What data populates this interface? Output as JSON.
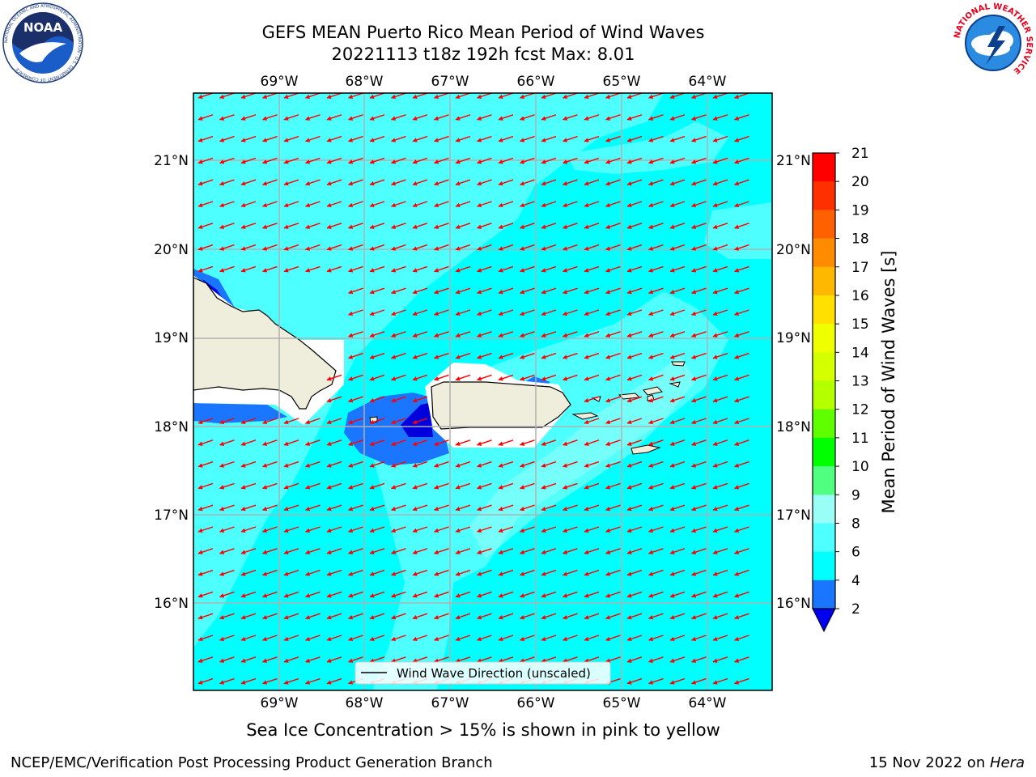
{
  "header": {
    "title_line1": "GEFS MEAN Puerto Rico Mean Period of Wind Waves",
    "title_line2": "20221113 t18z 192h fcst   Max: 8.01"
  },
  "logos": {
    "noaa": {
      "text": "NOAA",
      "ring_text": "NATIONAL OCEANIC AND ATMOSPHERIC ADMINISTRATION · U.S. DEPARTMENT OF COMMERCE"
    },
    "nws": {
      "ring_text": "NATIONAL WEATHER SERVICE"
    }
  },
  "map": {
    "lon_labels": [
      "69°W",
      "68°W",
      "67°W",
      "66°W",
      "65°W",
      "64°W"
    ],
    "lat_labels": [
      "21°N",
      "20°N",
      "19°N",
      "18°N",
      "17°N",
      "16°N"
    ],
    "legend_label": "Wind Wave Direction (unscaled)",
    "colors": {
      "sea_main": "#00ffff",
      "sea_light": "#4dffff",
      "sea_lighter": "#99fff6",
      "wave_blue": "#1a75ff",
      "wave_dark": "#0000dd",
      "land": "#efeedd",
      "arrow": "#ff0000",
      "grid": "#b0b0b0"
    }
  },
  "colorbar": {
    "label": "Mean Period of Wind Waves [s]",
    "ticks": [
      "21",
      "20",
      "19",
      "18",
      "17",
      "16",
      "15",
      "14",
      "13",
      "12",
      "11",
      "10",
      "9",
      "8",
      "6",
      "4",
      "2"
    ],
    "colors": [
      "#ff0000",
      "#ff2000",
      "#ff4800",
      "#ff7000",
      "#ff9800",
      "#ffc000",
      "#ffe800",
      "#f4ff00",
      "#ddff00",
      "#c0ff00",
      "#80ff00",
      "#40ff40",
      "#00ff00",
      "#60ff90",
      "#99fff6",
      "#4dffff",
      "#00ffff",
      "#1a75ff",
      "#0000ee"
    ]
  },
  "caption": "Sea Ice Concentration > 15% is shown in pink to yellow",
  "footer": {
    "left": "NCEP/EMC/Verification Post Processing Product Generation Branch",
    "date": "15 Nov 2022 on ",
    "host": "Hera"
  }
}
